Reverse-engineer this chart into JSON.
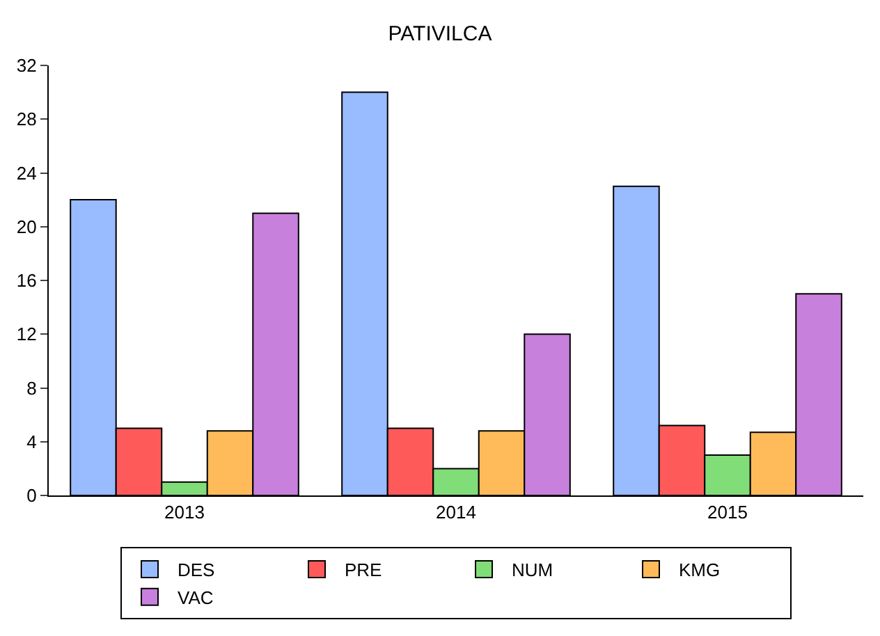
{
  "chart_data": {
    "type": "bar",
    "title": "PATIVILCA",
    "categories": [
      "2013",
      "2014",
      "2015"
    ],
    "series": [
      {
        "name": "DES",
        "color": "#99bbff",
        "values": [
          22,
          30,
          23
        ]
      },
      {
        "name": "PRE",
        "color": "#ff5a5a",
        "values": [
          5,
          5,
          5.2
        ]
      },
      {
        "name": "NUM",
        "color": "#80dd77",
        "values": [
          1,
          2,
          3
        ]
      },
      {
        "name": "KMG",
        "color": "#ffbb5a",
        "values": [
          4.8,
          4.8,
          4.7
        ]
      },
      {
        "name": "VAC",
        "color": "#c880dd",
        "values": [
          21,
          12,
          15
        ]
      }
    ],
    "ylim": [
      0,
      32
    ],
    "yticks": [
      0,
      4,
      8,
      12,
      16,
      20,
      24,
      28,
      32
    ],
    "grid": false,
    "legend": "bottom"
  }
}
